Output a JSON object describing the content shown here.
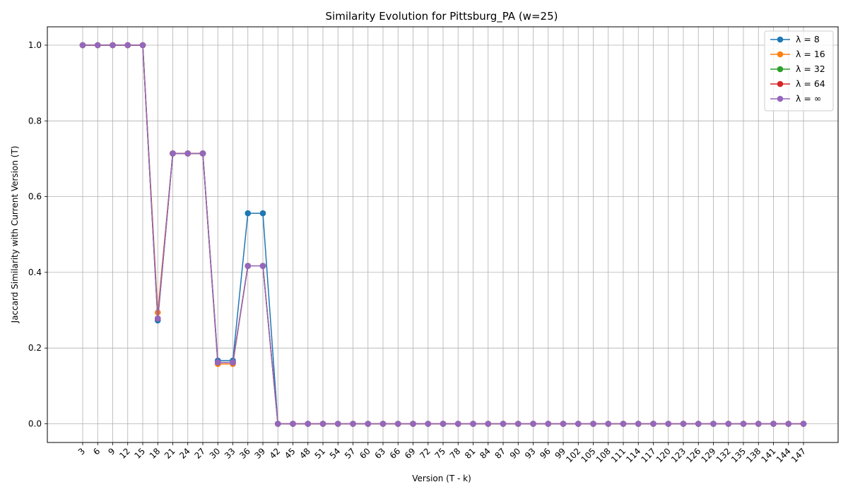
{
  "chart_data": {
    "type": "line",
    "title": "Similarity Evolution for Pittsburg_PA (w=25)",
    "xlabel": "Version (T - k)",
    "ylabel": "Jaccard Similarity with Current Version (T)",
    "x": [
      3,
      6,
      9,
      12,
      15,
      18,
      21,
      24,
      27,
      30,
      33,
      36,
      39,
      42,
      45,
      48,
      51,
      54,
      57,
      60,
      63,
      66,
      69,
      72,
      75,
      78,
      81,
      84,
      87,
      90,
      93,
      96,
      99,
      102,
      105,
      108,
      111,
      114,
      117,
      120,
      123,
      126,
      129,
      132,
      135,
      138,
      141,
      144,
      147
    ],
    "yticks": [
      "0.0",
      "0.2",
      "0.4",
      "0.6",
      "0.8",
      "1.0"
    ],
    "ylim": [
      -0.05,
      1.05
    ],
    "grid": true,
    "legend_position": "top-right",
    "series": [
      {
        "name": "λ = 8",
        "color": "#1f77b4",
        "values": [
          1.0,
          1.0,
          1.0,
          1.0,
          1.0,
          0.273,
          0.714,
          0.714,
          0.714,
          0.167,
          0.167,
          0.556,
          0.556,
          0,
          0,
          0,
          0,
          0,
          0,
          0,
          0,
          0,
          0,
          0,
          0,
          0,
          0,
          0,
          0,
          0,
          0,
          0,
          0,
          0,
          0,
          0,
          0,
          0,
          0,
          0,
          0,
          0,
          0,
          0,
          0,
          0,
          0,
          0,
          0
        ]
      },
      {
        "name": "λ = 16",
        "color": "#ff7f0e",
        "values": [
          1.0,
          1.0,
          1.0,
          1.0,
          1.0,
          0.294,
          0.714,
          0.714,
          0.714,
          0.158,
          0.158,
          0.417,
          0.417,
          0,
          0,
          0,
          0,
          0,
          0,
          0,
          0,
          0,
          0,
          0,
          0,
          0,
          0,
          0,
          0,
          0,
          0,
          0,
          0,
          0,
          0,
          0,
          0,
          0,
          0,
          0,
          0,
          0,
          0,
          0,
          0,
          0,
          0,
          0,
          0
        ]
      },
      {
        "name": "λ = 32",
        "color": "#2ca02c",
        "values": [
          1.0,
          1.0,
          1.0,
          1.0,
          1.0,
          0.278,
          0.714,
          0.714,
          0.714,
          0.162,
          0.162,
          0.417,
          0.417,
          0,
          0,
          0,
          0,
          0,
          0,
          0,
          0,
          0,
          0,
          0,
          0,
          0,
          0,
          0,
          0,
          0,
          0,
          0,
          0,
          0,
          0,
          0,
          0,
          0,
          0,
          0,
          0,
          0,
          0,
          0,
          0,
          0,
          0,
          0,
          0
        ]
      },
      {
        "name": "λ = 64",
        "color": "#d62728",
        "values": [
          1.0,
          1.0,
          1.0,
          1.0,
          1.0,
          0.278,
          0.714,
          0.714,
          0.714,
          0.162,
          0.162,
          0.417,
          0.417,
          0,
          0,
          0,
          0,
          0,
          0,
          0,
          0,
          0,
          0,
          0,
          0,
          0,
          0,
          0,
          0,
          0,
          0,
          0,
          0,
          0,
          0,
          0,
          0,
          0,
          0,
          0,
          0,
          0,
          0,
          0,
          0,
          0,
          0,
          0,
          0
        ]
      },
      {
        "name": "λ = ∞",
        "color": "#9467bd",
        "values": [
          1.0,
          1.0,
          1.0,
          1.0,
          1.0,
          0.278,
          0.714,
          0.714,
          0.714,
          0.162,
          0.162,
          0.417,
          0.417,
          0,
          0,
          0,
          0,
          0,
          0,
          0,
          0,
          0,
          0,
          0,
          0,
          0,
          0,
          0,
          0,
          0,
          0,
          0,
          0,
          0,
          0,
          0,
          0,
          0,
          0,
          0,
          0,
          0,
          0,
          0,
          0,
          0,
          0,
          0,
          0
        ]
      }
    ]
  }
}
